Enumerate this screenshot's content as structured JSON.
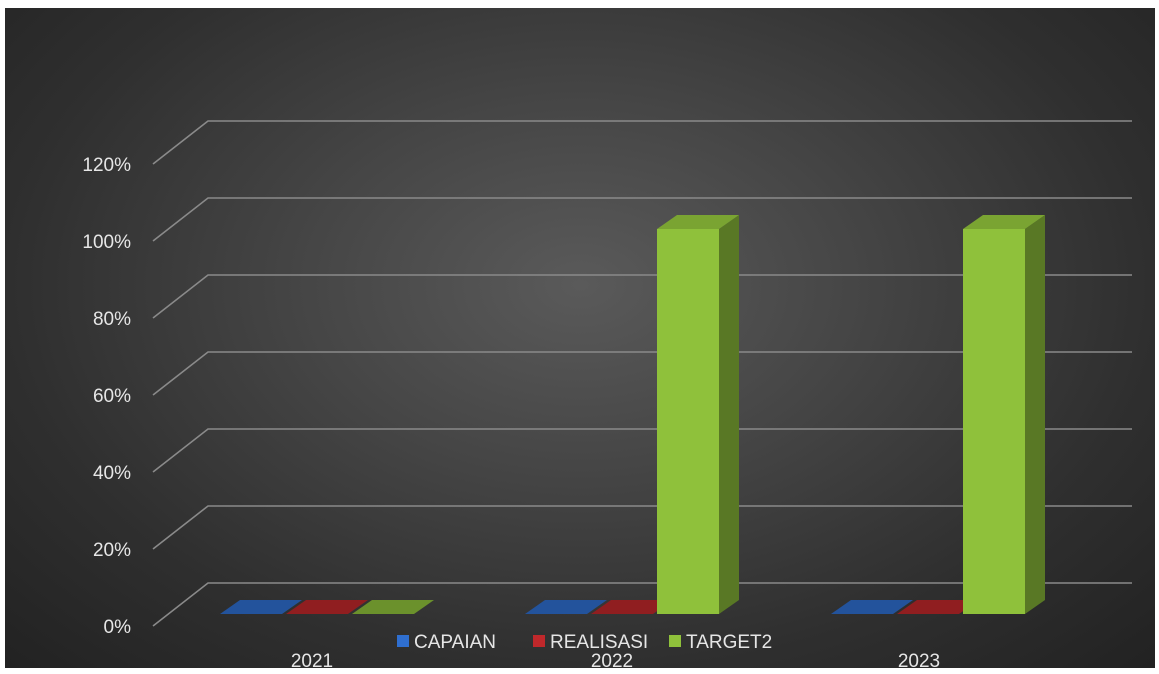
{
  "chart_data": {
    "type": "bar",
    "style": "3d-clustered-column",
    "categories": [
      "2021",
      "2022",
      "2023"
    ],
    "series": [
      {
        "name": "CAPAIAN",
        "values": [
          0,
          0,
          0
        ],
        "color": "#2f6fd0"
      },
      {
        "name": "REALISASI",
        "values": [
          0,
          0,
          0
        ],
        "color": "#c0282b"
      },
      {
        "name": "TARGET2",
        "values": [
          0,
          1.0,
          1.0
        ],
        "color": "#8fc13b"
      }
    ],
    "ylim": [
      0,
      1.2
    ],
    "yticks": [
      0,
      0.2,
      0.4,
      0.6,
      0.8,
      1.0,
      1.2
    ],
    "ytick_labels": [
      "0%",
      "20%",
      "40%",
      "60%",
      "80%",
      "100%",
      "120%"
    ],
    "grid": true,
    "legend_position": "bottom",
    "background": "#3a3a3a"
  }
}
